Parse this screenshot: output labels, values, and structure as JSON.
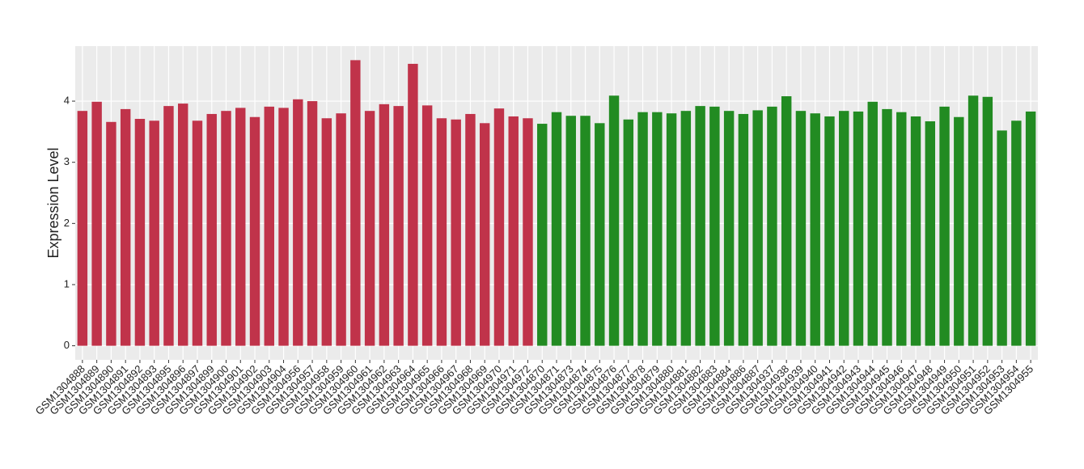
{
  "chart_data": {
    "type": "bar",
    "y_label": "Expression Level",
    "categories": [
      "GSM1304888",
      "GSM1304889",
      "GSM1304890",
      "GSM1304891",
      "GSM1304892",
      "GSM1304893",
      "GSM1304895",
      "GSM1304896",
      "GSM1304897",
      "GSM1304899",
      "GSM1304900",
      "GSM1304901",
      "GSM1304902",
      "GSM1304903",
      "GSM1304904",
      "GSM1304956",
      "GSM1304957",
      "GSM1304958",
      "GSM1304959",
      "GSM1304960",
      "GSM1304961",
      "GSM1304962",
      "GSM1304963",
      "GSM1304964",
      "GSM1304965",
      "GSM1304966",
      "GSM1304967",
      "GSM1304968",
      "GSM1304969",
      "GSM1304970",
      "GSM1304971",
      "GSM1304972",
      "GSM1304870",
      "GSM1304871",
      "GSM1304873",
      "GSM1304874",
      "GSM1304875",
      "GSM1304876",
      "GSM1304877",
      "GSM1304878",
      "GSM1304879",
      "GSM1304880",
      "GSM1304881",
      "GSM1304882",
      "GSM1304883",
      "GSM1304884",
      "GSM1304886",
      "GSM1304887",
      "GSM1304937",
      "GSM1304938",
      "GSM1304939",
      "GSM1304940",
      "GSM1304941",
      "GSM1304942",
      "GSM1304943",
      "GSM1304944",
      "GSM1304945",
      "GSM1304946",
      "GSM1304947",
      "GSM1304948",
      "GSM1304949",
      "GSM1304950",
      "GSM1304951",
      "GSM1304952",
      "GSM1304953",
      "GSM1304954",
      "GSM1304955"
    ],
    "values": [
      3.84,
      3.99,
      3.66,
      3.87,
      3.71,
      3.68,
      3.92,
      3.96,
      3.68,
      3.79,
      3.84,
      3.89,
      3.74,
      3.91,
      3.89,
      4.03,
      4.0,
      3.72,
      3.8,
      4.67,
      3.84,
      3.95,
      3.92,
      4.61,
      3.93,
      3.72,
      3.7,
      3.79,
      3.64,
      3.88,
      3.75,
      3.72,
      3.63,
      3.82,
      3.76,
      3.76,
      3.64,
      4.09,
      3.7,
      3.82,
      3.82,
      3.8,
      3.84,
      3.92,
      3.91,
      3.84,
      3.79,
      3.85,
      3.91,
      4.08,
      3.84,
      3.8,
      3.75,
      3.84,
      3.83,
      3.99,
      3.87,
      3.82,
      3.75,
      3.67,
      3.91,
      3.74,
      4.09,
      4.07,
      3.52,
      3.68,
      3.83
    ],
    "bar_colors": [
      "#c0334a",
      "#c0334a",
      "#c0334a",
      "#c0334a",
      "#c0334a",
      "#c0334a",
      "#c0334a",
      "#c0334a",
      "#c0334a",
      "#c0334a",
      "#c0334a",
      "#c0334a",
      "#c0334a",
      "#c0334a",
      "#c0334a",
      "#c0334a",
      "#c0334a",
      "#c0334a",
      "#c0334a",
      "#c0334a",
      "#c0334a",
      "#c0334a",
      "#c0334a",
      "#c0334a",
      "#c0334a",
      "#c0334a",
      "#c0334a",
      "#c0334a",
      "#c0334a",
      "#c0334a",
      "#c0334a",
      "#c0334a",
      "#228b22",
      "#228b22",
      "#228b22",
      "#228b22",
      "#228b22",
      "#228b22",
      "#228b22",
      "#228b22",
      "#228b22",
      "#228b22",
      "#228b22",
      "#228b22",
      "#228b22",
      "#228b22",
      "#228b22",
      "#228b22",
      "#228b22",
      "#228b22",
      "#228b22",
      "#228b22",
      "#228b22",
      "#228b22",
      "#228b22",
      "#228b22",
      "#228b22",
      "#228b22",
      "#228b22",
      "#228b22",
      "#228b22",
      "#228b22",
      "#228b22",
      "#228b22",
      "#228b22",
      "#228b22",
      "#228b22"
    ],
    "ylim": [
      -0.23,
      4.9
    ],
    "yticks": [
      0,
      1,
      2,
      3,
      4
    ],
    "grid": true
  }
}
